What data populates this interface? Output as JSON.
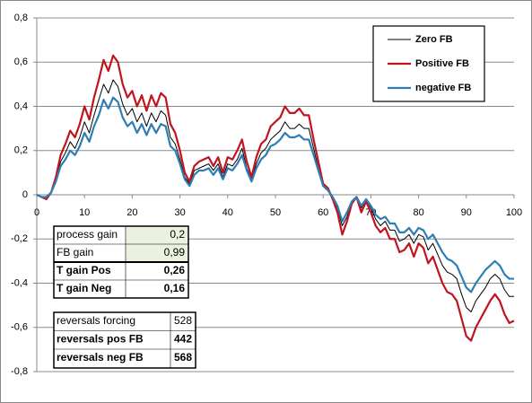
{
  "chart_data": {
    "type": "line",
    "x": [
      0,
      1,
      2,
      3,
      4,
      5,
      6,
      7,
      8,
      9,
      10,
      11,
      12,
      13,
      14,
      15,
      16,
      17,
      18,
      19,
      20,
      21,
      22,
      23,
      24,
      25,
      26,
      27,
      28,
      29,
      30,
      31,
      32,
      33,
      34,
      35,
      36,
      37,
      38,
      39,
      40,
      41,
      42,
      43,
      44,
      45,
      46,
      47,
      48,
      49,
      50,
      51,
      52,
      53,
      54,
      55,
      56,
      57,
      58,
      59,
      60,
      61,
      62,
      63,
      64,
      65,
      66,
      67,
      68,
      69,
      70,
      71,
      72,
      73,
      74,
      75,
      76,
      77,
      78,
      79,
      80,
      81,
      82,
      83,
      84,
      85,
      86,
      87,
      88,
      89,
      90,
      91,
      92,
      93,
      94,
      95,
      96,
      97,
      98,
      99,
      100
    ],
    "series": [
      {
        "name": "Zero FB",
        "color": "#000000",
        "width": 1,
        "values": [
          0,
          -0.01,
          -0.02,
          0.01,
          0.07,
          0.15,
          0.19,
          0.24,
          0.21,
          0.26,
          0.33,
          0.28,
          0.36,
          0.43,
          0.5,
          0.46,
          0.52,
          0.49,
          0.41,
          0.36,
          0.39,
          0.33,
          0.37,
          0.31,
          0.37,
          0.33,
          0.38,
          0.36,
          0.26,
          0.23,
          0.16,
          0.08,
          0.05,
          0.11,
          0.12,
          0.13,
          0.14,
          0.11,
          0.14,
          0.08,
          0.14,
          0.13,
          0.16,
          0.21,
          0.12,
          0.07,
          0.14,
          0.19,
          0.21,
          0.25,
          0.27,
          0.29,
          0.33,
          0.3,
          0.3,
          0.32,
          0.3,
          0.3,
          0.21,
          0.12,
          0.04,
          0.02,
          -0.02,
          -0.06,
          -0.14,
          -0.1,
          -0.03,
          -0.01,
          -0.06,
          -0.02,
          -0.06,
          -0.11,
          -0.14,
          -0.12,
          -0.16,
          -0.16,
          -0.21,
          -0.2,
          -0.18,
          -0.22,
          -0.18,
          -0.19,
          -0.25,
          -0.22,
          -0.27,
          -0.32,
          -0.35,
          -0.36,
          -0.38,
          -0.45,
          -0.51,
          -0.53,
          -0.48,
          -0.45,
          -0.42,
          -0.38,
          -0.36,
          -0.38,
          -0.43,
          -0.46,
          -0.46
        ]
      },
      {
        "name": "Positive FB",
        "color": "#c0141e",
        "width": 2.2,
        "values": [
          0,
          -0.01,
          -0.02,
          0.01,
          0.08,
          0.18,
          0.23,
          0.29,
          0.26,
          0.32,
          0.4,
          0.34,
          0.44,
          0.52,
          0.61,
          0.56,
          0.63,
          0.6,
          0.5,
          0.44,
          0.47,
          0.4,
          0.45,
          0.38,
          0.45,
          0.4,
          0.46,
          0.44,
          0.32,
          0.28,
          0.2,
          0.1,
          0.06,
          0.13,
          0.15,
          0.16,
          0.17,
          0.13,
          0.17,
          0.1,
          0.17,
          0.16,
          0.2,
          0.25,
          0.15,
          0.08,
          0.17,
          0.23,
          0.25,
          0.31,
          0.33,
          0.35,
          0.4,
          0.37,
          0.37,
          0.39,
          0.36,
          0.36,
          0.25,
          0.15,
          0.05,
          0.03,
          -0.02,
          -0.08,
          -0.18,
          -0.12,
          -0.04,
          -0.01,
          -0.08,
          -0.03,
          -0.08,
          -0.14,
          -0.17,
          -0.15,
          -0.2,
          -0.2,
          -0.26,
          -0.25,
          -0.22,
          -0.28,
          -0.22,
          -0.24,
          -0.31,
          -0.28,
          -0.34,
          -0.4,
          -0.44,
          -0.45,
          -0.48,
          -0.56,
          -0.64,
          -0.66,
          -0.6,
          -0.56,
          -0.52,
          -0.48,
          -0.45,
          -0.48,
          -0.54,
          -0.58,
          -0.57
        ]
      },
      {
        "name": "negative FB",
        "color": "#2e7db5",
        "width": 2.2,
        "values": [
          0,
          -0.01,
          -0.01,
          0.01,
          0.06,
          0.13,
          0.16,
          0.2,
          0.18,
          0.22,
          0.28,
          0.24,
          0.31,
          0.36,
          0.43,
          0.39,
          0.44,
          0.42,
          0.35,
          0.31,
          0.33,
          0.28,
          0.32,
          0.27,
          0.32,
          0.28,
          0.32,
          0.31,
          0.22,
          0.2,
          0.14,
          0.07,
          0.04,
          0.09,
          0.11,
          0.11,
          0.12,
          0.09,
          0.12,
          0.07,
          0.12,
          0.11,
          0.14,
          0.18,
          0.11,
          0.06,
          0.12,
          0.16,
          0.18,
          0.22,
          0.23,
          0.25,
          0.28,
          0.26,
          0.26,
          0.27,
          0.25,
          0.25,
          0.18,
          0.11,
          0.04,
          0.02,
          -0.01,
          -0.05,
          -0.12,
          -0.08,
          -0.03,
          -0.01,
          -0.05,
          -0.02,
          -0.05,
          -0.09,
          -0.11,
          -0.1,
          -0.13,
          -0.13,
          -0.17,
          -0.17,
          -0.15,
          -0.18,
          -0.15,
          -0.16,
          -0.2,
          -0.18,
          -0.22,
          -0.26,
          -0.29,
          -0.3,
          -0.32,
          -0.37,
          -0.42,
          -0.44,
          -0.4,
          -0.37,
          -0.34,
          -0.32,
          -0.3,
          -0.32,
          -0.36,
          -0.38,
          -0.38
        ]
      }
    ],
    "xlim": [
      0,
      100
    ],
    "xticks": [
      0,
      10,
      20,
      30,
      40,
      50,
      60,
      70,
      80,
      90,
      100
    ],
    "ylim": [
      -0.8,
      0.8
    ],
    "yticks": [
      {
        "value": -0.8,
        "label": "-0,8"
      },
      {
        "value": -0.6,
        "label": "-0,6"
      },
      {
        "value": -0.4,
        "label": "-0,4"
      },
      {
        "value": -0.2,
        "label": "-0,2"
      },
      0,
      {
        "value": 0.2,
        "label": "0,2"
      },
      {
        "value": 0.4,
        "label": "0,4"
      },
      {
        "value": 0.6,
        "label": "0,6"
      },
      {
        "value": 0.8,
        "label": "0,8"
      }
    ],
    "grid": true,
    "legend": "top-right"
  },
  "tables": [
    {
      "rows": [
        [
          "process gain",
          "0,2"
        ],
        [
          "FB gain",
          "0,99"
        ],
        [
          "T gain Pos",
          "0,26"
        ],
        [
          "T gain Neg",
          "0,16"
        ]
      ]
    },
    {
      "rows": [
        [
          "reversals forcing",
          "528"
        ],
        [
          "reversals pos FB",
          "442"
        ],
        [
          "reversals neg FB",
          "568"
        ]
      ]
    }
  ]
}
